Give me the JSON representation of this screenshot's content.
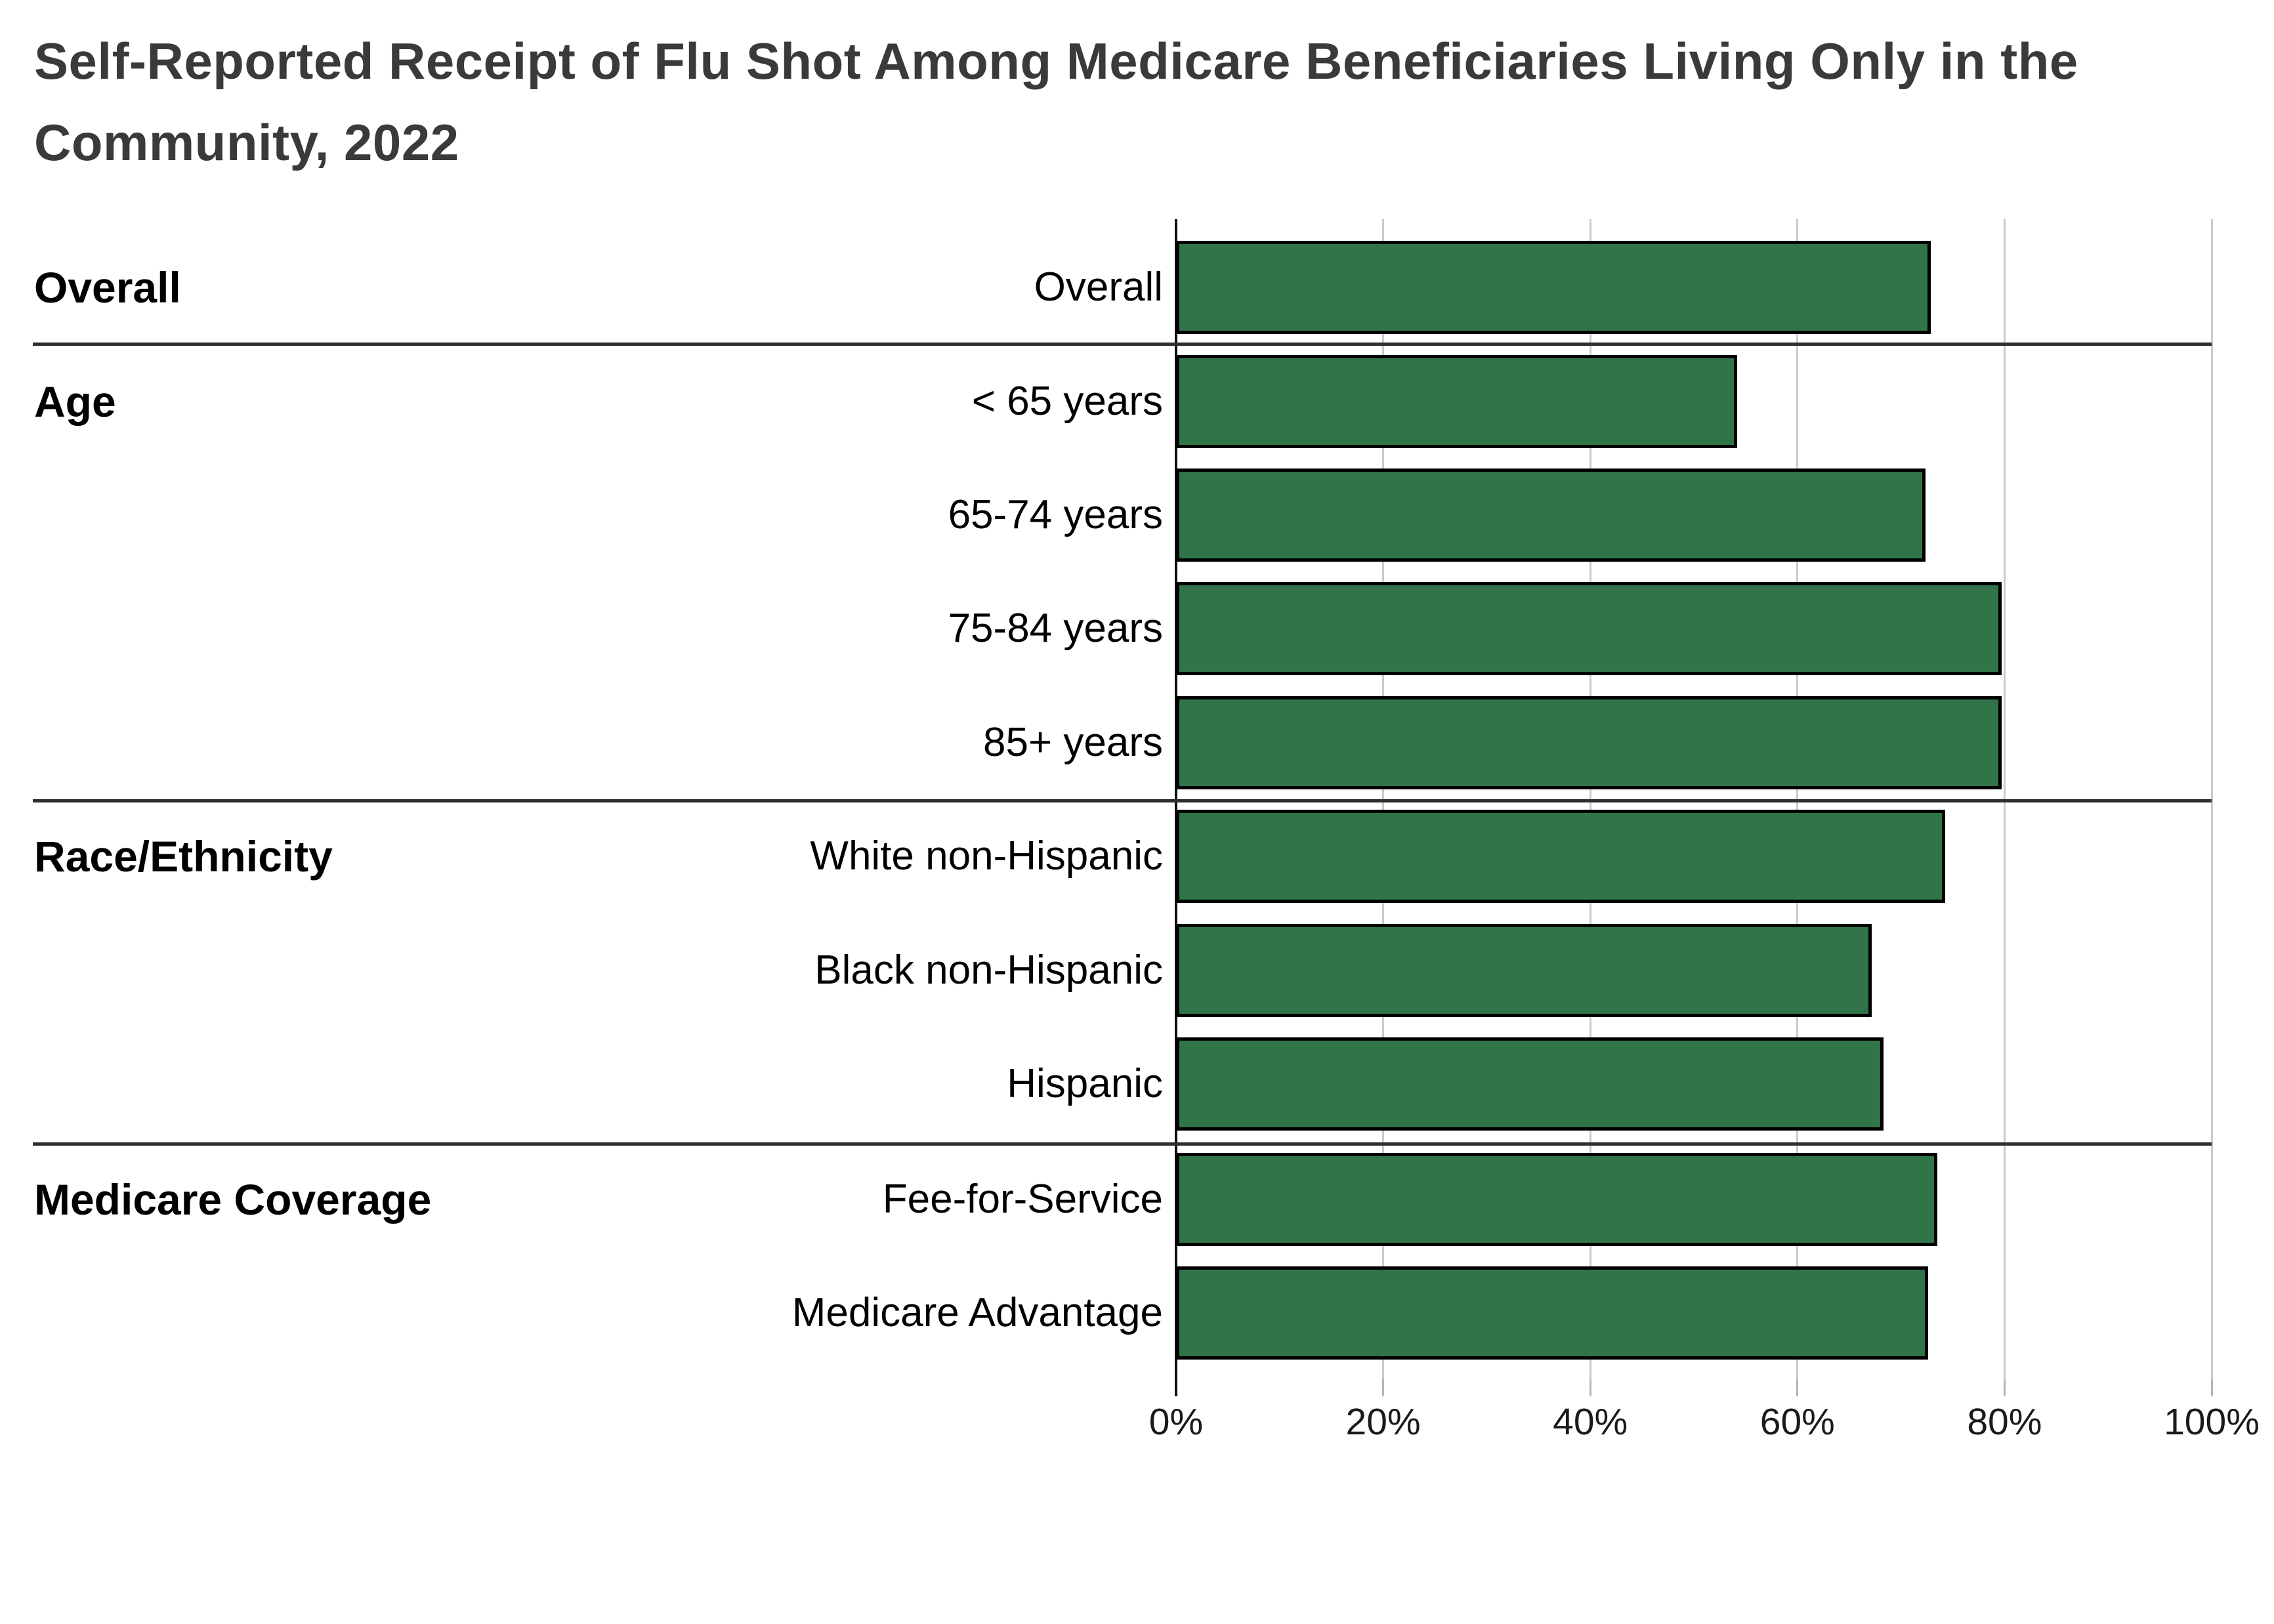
{
  "chart_data": {
    "type": "bar",
    "orientation": "horizontal",
    "title": "Self-Reported Receipt of Flu Shot Among Medicare Beneficiaries Living Only in the Community, 2022",
    "title_lines": [
      "Self-Reported Receipt of Flu Shot Among Medicare Beneficiaries Living Only in the",
      "Community, 2022"
    ],
    "xlabel": "",
    "ylabel": "",
    "x_axis": {
      "tick_labels": [
        "0%",
        "20%",
        "40%",
        "60%",
        "80%",
        "100%"
      ],
      "tick_values": [
        0,
        20,
        40,
        60,
        80,
        100
      ],
      "range": [
        0,
        100
      ],
      "unit": "%"
    },
    "grid": true,
    "legend": false,
    "bar_color": "#317449",
    "bar_border_color": "#000000",
    "categories": [
      "Overall",
      "< 65 years",
      "65-74 years",
      "75-84 years",
      "85+ years",
      "White non-Hispanic",
      "Black non-Hispanic",
      "Hispanic",
      "Fee-for-Service",
      "Medicare Advantage"
    ],
    "values": [
      72.9,
      54.2,
      72.4,
      79.7,
      79.7,
      74.3,
      67.2,
      68.3,
      73.5,
      72.6
    ],
    "groups": [
      {
        "label": "Overall",
        "rows": [
          {
            "label": "Overall",
            "value": 72.9
          }
        ]
      },
      {
        "label": "Age",
        "rows": [
          {
            "label": "< 65 years",
            "value": 54.2
          },
          {
            "label": "65-74 years",
            "value": 72.4
          },
          {
            "label": "75-84 years",
            "value": 79.7
          },
          {
            "label": "85+ years",
            "value": 79.7
          }
        ]
      },
      {
        "label": "Race/Ethnicity",
        "rows": [
          {
            "label": "White non-Hispanic",
            "value": 74.3
          },
          {
            "label": "Black non-Hispanic",
            "value": 67.2
          },
          {
            "label": "Hispanic",
            "value": 68.3
          }
        ]
      },
      {
        "label": "Medicare Coverage",
        "rows": [
          {
            "label": "Fee-for-Service",
            "value": 73.5
          },
          {
            "label": "Medicare Advantage",
            "value": 72.6
          }
        ]
      }
    ]
  }
}
